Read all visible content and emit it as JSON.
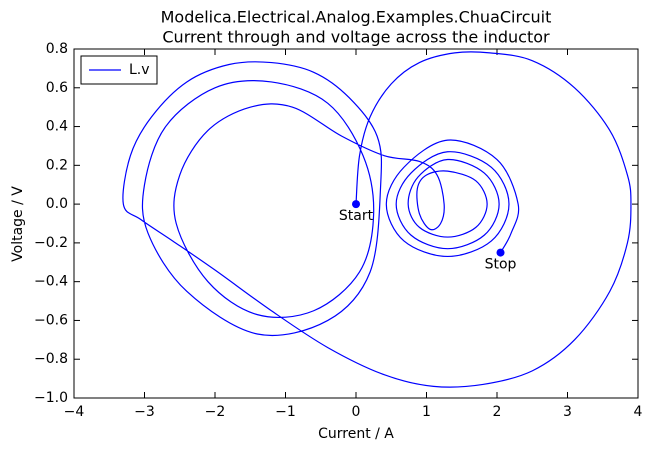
{
  "chart_data": {
    "type": "line",
    "title": "Modelica.Electrical.Analog.Examples.ChuaCircuit",
    "subtitle": "Current through and voltage across the inductor",
    "x_label": "Current / A",
    "y_label": "Voltage / V",
    "legend": "upper left",
    "xlim": [
      -4,
      4
    ],
    "ylim": [
      -1.0,
      0.8
    ],
    "xticks": [
      {
        "value": -4,
        "label": "−4"
      },
      {
        "value": -3,
        "label": "−3"
      },
      {
        "value": -2,
        "label": "−2"
      },
      {
        "value": -1,
        "label": "−1"
      },
      0,
      1,
      2,
      3,
      4
    ],
    "yticks": [
      {
        "value": -1.0,
        "label": "−1.0"
      },
      {
        "value": -0.8,
        "label": "−0.8"
      },
      {
        "value": -0.6,
        "label": "−0.6"
      },
      {
        "value": -0.4,
        "label": "−0.4"
      },
      {
        "value": -0.2,
        "label": "−0.2"
      },
      {
        "value": 0.0,
        "label": "0.0"
      },
      0.2,
      0.4,
      0.6,
      0.8
    ],
    "series": [
      {
        "name": "L.v",
        "color": "#0000ff",
        "x": [
          0,
          0.05,
          0.2,
          0.5,
          0.9,
          1.4,
          1.9,
          2.5,
          3.1,
          3.6,
          3.85,
          3.9,
          3.85,
          3.6,
          3.1,
          2.5,
          1.8,
          1.1,
          0.4,
          -0.4,
          -1.2,
          -2.0,
          -2.6,
          -3.05,
          -3.3,
          -3.2,
          -2.9,
          -2.4,
          -1.8,
          -1.2,
          -0.6,
          -0.1,
          0.3,
          0.35,
          0.2,
          -0.4,
          -1.4,
          -2.4,
          -2.95,
          -3.0,
          -2.7,
          -2.0,
          -1.2,
          -0.4,
          0.1,
          0.25,
          0.05,
          -0.6,
          -1.4,
          -2.1,
          -2.55,
          -2.5,
          -2.1,
          -1.5,
          -0.9,
          -0.2,
          0.4,
          0.9,
          1.15,
          1.25,
          1.2,
          1.05,
          0.9,
          0.87,
          1.0,
          1.3,
          1.7,
          1.86,
          1.7,
          1.3,
          0.9,
          0.74,
          0.88,
          1.3,
          1.82,
          2.03,
          1.82,
          1.3,
          0.78,
          0.57,
          0.78,
          1.3,
          1.92,
          2.17,
          1.92,
          1.3,
          0.68,
          0.43,
          0.68,
          1.3,
          2.0,
          2.3,
          2.2,
          2.05
        ],
        "values": [
          0,
          0.25,
          0.45,
          0.62,
          0.73,
          0.78,
          0.78,
          0.74,
          0.6,
          0.38,
          0.15,
          0,
          -0.2,
          -0.45,
          -0.7,
          -0.86,
          -0.93,
          -0.94,
          -0.88,
          -0.74,
          -0.55,
          -0.34,
          -0.19,
          -0.08,
          0,
          0.25,
          0.45,
          0.63,
          0.72,
          0.73,
          0.68,
          0.55,
          0.35,
          0.1,
          -0.35,
          -0.6,
          -0.67,
          -0.45,
          -0.15,
          0.1,
          0.4,
          0.6,
          0.63,
          0.52,
          0.25,
          -0.05,
          -0.35,
          -0.55,
          -0.57,
          -0.4,
          -0.1,
          0.15,
          0.38,
          0.5,
          0.5,
          0.35,
          0.25,
          0.22,
          0.15,
          0.0,
          -0.1,
          -0.13,
          -0.05,
          0.08,
          0.15,
          0.17,
          0.12,
          0,
          -0.12,
          -0.17,
          -0.12,
          0,
          0.14,
          0.23,
          0.16,
          0,
          -0.16,
          -0.23,
          -0.16,
          0,
          0.16,
          0.27,
          0.19,
          0,
          -0.19,
          -0.27,
          -0.19,
          0,
          0.19,
          0.33,
          0.23,
          0,
          -0.15,
          -0.25
        ]
      }
    ],
    "annotations": [
      {
        "text": "Start",
        "x": 0,
        "y": 0
      },
      {
        "text": "Stop",
        "x": 2.05,
        "y": -0.25
      }
    ]
  }
}
